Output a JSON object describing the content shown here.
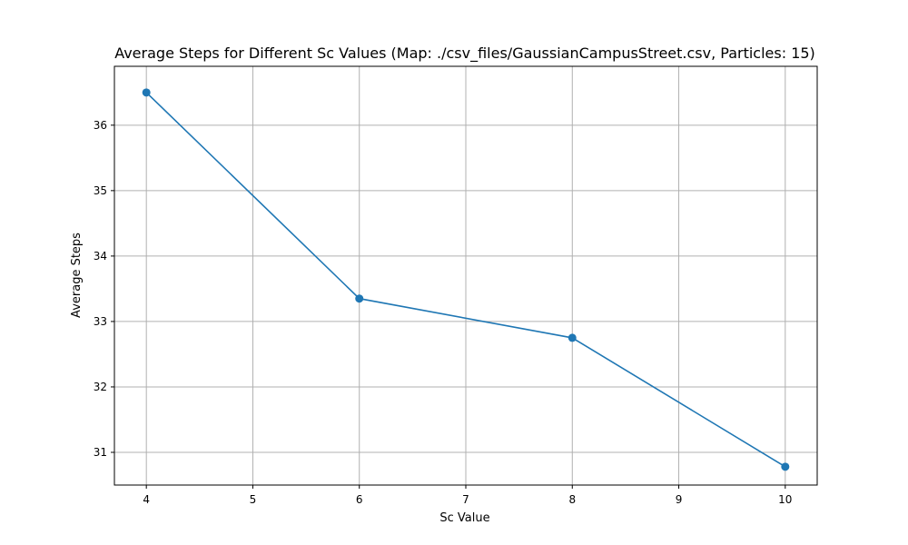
{
  "chart_data": {
    "type": "line",
    "title": "Average Steps for Different Sc Values (Map: ./csv_files/GaussianCampusStreet.csv, Particles: 15)",
    "xlabel": "Sc Value",
    "ylabel": "Average Steps",
    "x": [
      4,
      6,
      8,
      10
    ],
    "series": [
      {
        "values": [
          36.5,
          33.35,
          32.75,
          30.78
        ]
      }
    ],
    "xlim": [
      3.7,
      10.3
    ],
    "ylim": [
      30.5,
      36.9
    ],
    "xticks": [
      4,
      5,
      6,
      7,
      8,
      9,
      10
    ],
    "yticks": [
      31,
      32,
      33,
      34,
      35,
      36
    ],
    "grid": true,
    "marker": "circle",
    "colors": {
      "line": "#1f77b4",
      "grid": "#b0b0b0",
      "axes": "#000000"
    }
  }
}
